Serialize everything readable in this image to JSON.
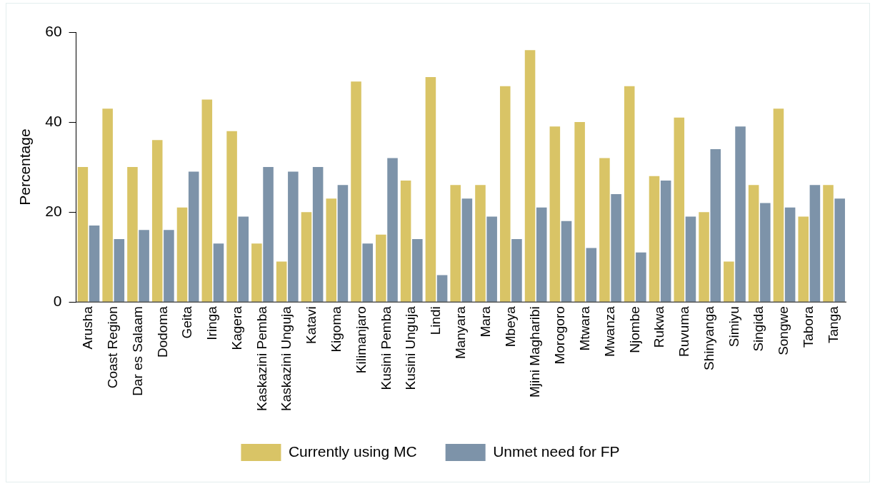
{
  "chart_data": {
    "type": "bar",
    "ylabel": "Percentage",
    "categories": [
      "Arusha",
      "Coast Region",
      "Dar es Salaam",
      "Dodoma",
      "Geita",
      "Iringa",
      "Kagera",
      "Kaskazini Pemba",
      "Kaskazini Unguja",
      "Katavi",
      "Kigoma",
      "Kilimanjaro",
      "Kusini Pemba",
      "Kusini Unguja",
      "Lindi",
      "Manyara",
      "Mara",
      "Mbeya",
      "Mjini Magharibi",
      "Morogoro",
      "Mtwara",
      "Mwanza",
      "Njombe",
      "Rukwa",
      "Ruvuma",
      "Shinyanga",
      "Simiyu",
      "Singida",
      "Songwe",
      "Tabora",
      "Tanga"
    ],
    "series": [
      {
        "name": "Currently using MC",
        "color": "#d9c466",
        "values": [
          30,
          43,
          30,
          36,
          21,
          45,
          38,
          13,
          9,
          20,
          23,
          49,
          15,
          27,
          50,
          26,
          26,
          48,
          56,
          39,
          40,
          32,
          48,
          28,
          41,
          20,
          9,
          26,
          43,
          19,
          26
        ]
      },
      {
        "name": "Unmet need for FP",
        "color": "#7d93a9",
        "values": [
          17,
          14,
          16,
          16,
          29,
          13,
          19,
          30,
          29,
          30,
          26,
          13,
          32,
          14,
          6,
          23,
          19,
          14,
          21,
          18,
          12,
          24,
          11,
          27,
          19,
          34,
          39,
          22,
          21,
          26,
          23
        ]
      }
    ],
    "ylim": [
      0,
      60
    ],
    "yticks": [
      0,
      20,
      40,
      60
    ],
    "grid": false,
    "legend": "bottom"
  }
}
